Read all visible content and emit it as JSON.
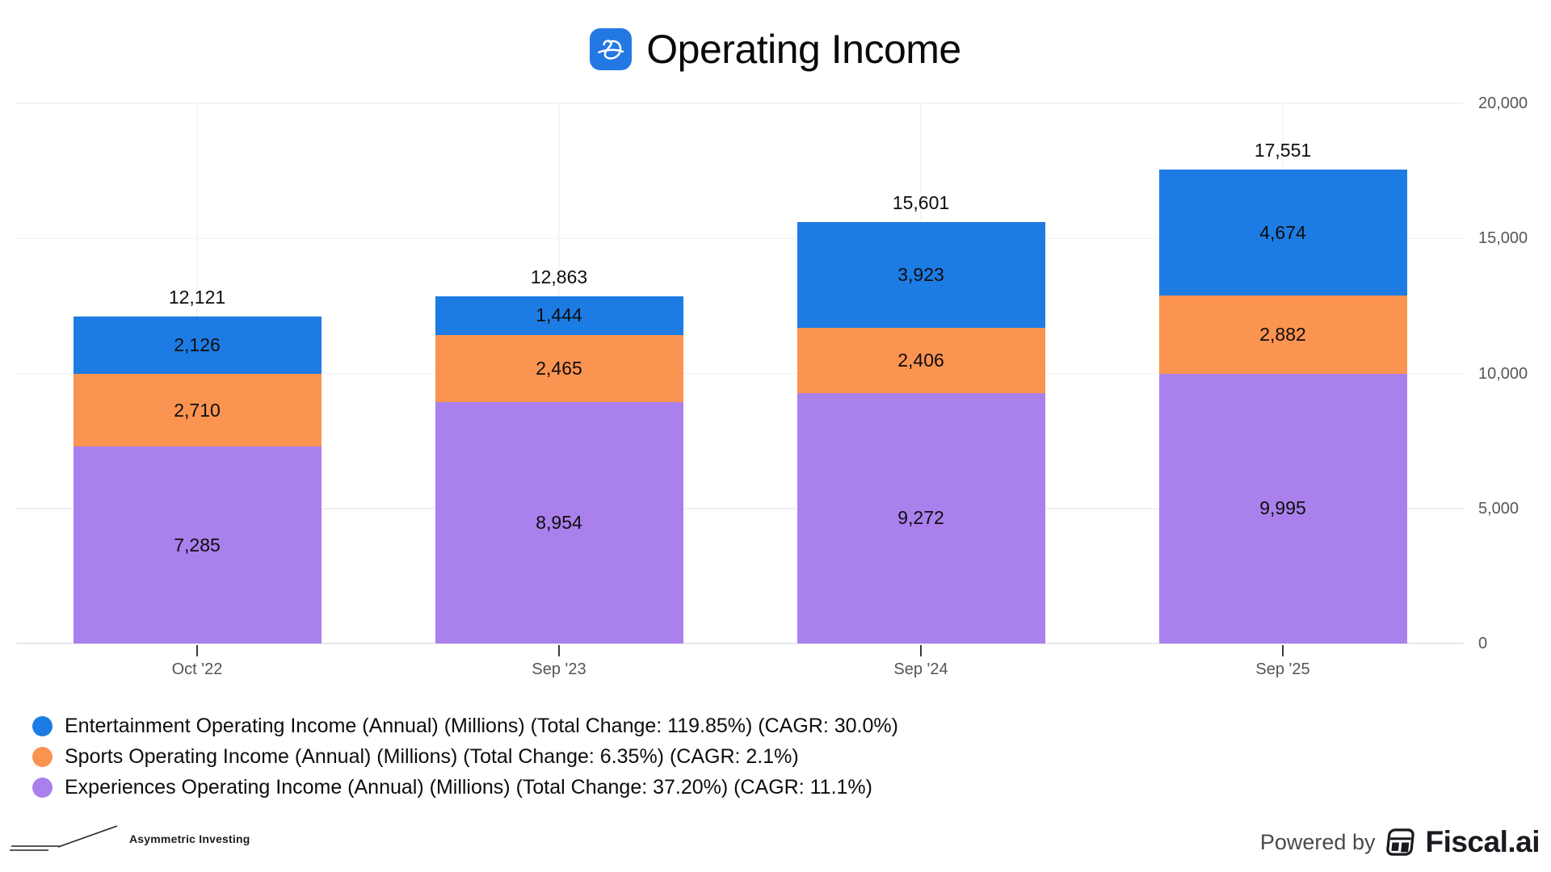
{
  "header": {
    "title": "Operating Income",
    "logo": "disney-d"
  },
  "chart_data": {
    "type": "bar",
    "stacked": true,
    "title": "Operating Income",
    "categories": [
      "Oct '22",
      "Sep '23",
      "Sep '24",
      "Sep '25"
    ],
    "series": [
      {
        "name": "Entertainment",
        "color": "#1d7ce4",
        "values": [
          2126,
          1444,
          3923,
          4674
        ],
        "legend": "Entertainment Operating Income (Annual) (Millions) (Total Change: 119.85%) (CAGR: 30.0%)"
      },
      {
        "name": "Sports",
        "color": "#fb9351",
        "values": [
          2710,
          2465,
          2406,
          2882
        ],
        "legend": "Sports Operating Income (Annual) (Millions) (Total Change: 6.35%) (CAGR: 2.1%)"
      },
      {
        "name": "Experiences",
        "color": "#aa80ec",
        "values": [
          7285,
          8954,
          9272,
          9995
        ],
        "legend": "Experiences Operating Income (Annual) (Millions) (Total Change: 37.20%) (CAGR: 11.1%)"
      }
    ],
    "totals": [
      12121,
      12863,
      15601,
      17551
    ],
    "y_ticks": [
      0,
      5000,
      10000,
      15000,
      20000
    ],
    "ylim": [
      0,
      20000
    ],
    "grid": true,
    "legend_position": "bottom-left"
  },
  "footer": {
    "left_brand": "Asymmetric Investing",
    "powered_by": "Powered by",
    "brand": "Fiscal.ai"
  }
}
